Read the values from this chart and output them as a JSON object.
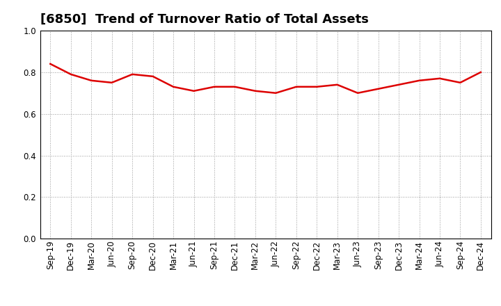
{
  "title": "[6850]  Trend of Turnover Ratio of Total Assets",
  "x_labels": [
    "Sep-19",
    "Dec-19",
    "Mar-20",
    "Jun-20",
    "Sep-20",
    "Dec-20",
    "Mar-21",
    "Jun-21",
    "Sep-21",
    "Dec-21",
    "Mar-22",
    "Jun-22",
    "Sep-22",
    "Dec-22",
    "Mar-23",
    "Jun-23",
    "Sep-23",
    "Dec-23",
    "Mar-24",
    "Jun-24",
    "Sep-24",
    "Dec-24"
  ],
  "y_values": [
    0.84,
    0.79,
    0.76,
    0.75,
    0.79,
    0.78,
    0.73,
    0.71,
    0.73,
    0.73,
    0.71,
    0.7,
    0.73,
    0.73,
    0.74,
    0.7,
    0.72,
    0.74,
    0.76,
    0.77,
    0.75,
    0.8
  ],
  "line_color": "#dd0000",
  "line_width": 1.8,
  "ylim": [
    0.0,
    1.0
  ],
  "yticks": [
    0.0,
    0.2,
    0.4,
    0.6,
    0.8,
    1.0
  ],
  "grid_color": "#999999",
  "grid_style": "dotted",
  "bg_color": "#ffffff",
  "title_fontsize": 13,
  "tick_fontsize": 8.5,
  "title_color": "#000000",
  "title_fontweight": "bold"
}
